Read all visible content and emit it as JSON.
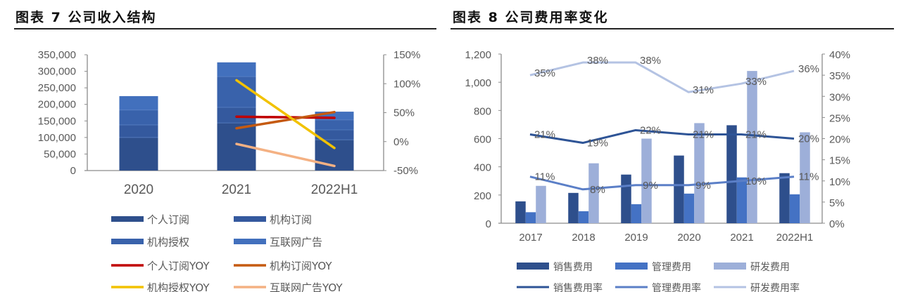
{
  "left": {
    "title": "图表 7 公司收入结构"
  },
  "right": {
    "title": "图表 8 公司费用率变化"
  },
  "chart_data": [
    {
      "type": "bar",
      "stacked": true,
      "title": "图表 7 公司收入结构",
      "categories": [
        "2020",
        "2021",
        "2022H1"
      ],
      "series": [
        {
          "name": "个人订阅",
          "axis": "left",
          "color": "#2E4F8C",
          "values": [
            100000,
            144000,
            93000
          ]
        },
        {
          "name": "机构订阅",
          "axis": "left",
          "color": "#34599E",
          "values": [
            38000,
            47000,
            30000
          ]
        },
        {
          "name": "机构授权",
          "axis": "left",
          "color": "#3962AB",
          "values": [
            45000,
            93000,
            30000
          ]
        },
        {
          "name": "互联网广告",
          "axis": "left",
          "color": "#4270BD",
          "values": [
            42000,
            43000,
            25000
          ]
        },
        {
          "name": "个人订阅YOY",
          "type": "line",
          "axis": "right",
          "color": "#C00000",
          "values": [
            null,
            43,
            41
          ]
        },
        {
          "name": "机构订阅YOY",
          "type": "line",
          "axis": "right",
          "color": "#C55A11",
          "values": [
            null,
            23,
            51
          ]
        },
        {
          "name": "机构授权YOY",
          "type": "line",
          "axis": "right",
          "color": "#F2C200",
          "values": [
            null,
            106,
            -11
          ]
        },
        {
          "name": "互联网广告YOY",
          "type": "line",
          "axis": "right",
          "color": "#F4B183",
          "values": [
            null,
            -4,
            -42
          ]
        }
      ],
      "left_axis": {
        "ylim": [
          0,
          350000
        ],
        "ticks": [
          "350,000",
          "300,000",
          "250,000",
          "200,000",
          "150,000",
          "100,000",
          "50,000",
          "0"
        ]
      },
      "right_axis": {
        "ylim": [
          -50,
          150
        ],
        "ticks": [
          "150%",
          "100%",
          "50%",
          "0%",
          "-50%"
        ]
      },
      "legend": [
        "个人订阅",
        "机构订阅",
        "机构授权",
        "互联网广告",
        "个人订阅YOY",
        "机构订阅YOY",
        "机构授权YOY",
        "互联网广告YOY"
      ],
      "legend_position": "bottom",
      "grid": false
    },
    {
      "type": "bar",
      "title": "图表 8 公司费用率变化",
      "categories": [
        "2017",
        "2018",
        "2019",
        "2020",
        "2021",
        "2022H1"
      ],
      "series": [
        {
          "name": "销售费用",
          "axis": "left",
          "color": "#2E4F8C",
          "values": [
            155,
            215,
            345,
            480,
            695,
            355
          ]
        },
        {
          "name": "管理费用",
          "axis": "left",
          "color": "#4472C4",
          "values": [
            78,
            85,
            135,
            210,
            325,
            205
          ]
        },
        {
          "name": "研发费用",
          "axis": "left",
          "color": "#9DAFD9",
          "values": [
            265,
            425,
            600,
            710,
            1080,
            645
          ]
        },
        {
          "name": "销售费用率",
          "type": "line",
          "axis": "right",
          "color": "#2E5496",
          "values": [
            21,
            19,
            22,
            21,
            21,
            20
          ],
          "labels": [
            "21%",
            "19%",
            "22%",
            "21%",
            "21%",
            "20%"
          ]
        },
        {
          "name": "管理费用率",
          "type": "line",
          "axis": "right",
          "color": "#5B7FC7",
          "values": [
            11,
            8,
            9,
            9,
            10,
            11
          ],
          "labels": [
            "11%",
            "8%",
            "9%",
            "9%",
            "10%",
            "11%"
          ]
        },
        {
          "name": "研发费用率",
          "type": "line",
          "axis": "right",
          "color": "#B4C3E3",
          "values": [
            35,
            38,
            38,
            31,
            33,
            36
          ],
          "labels": [
            "35%",
            "38%",
            "38%",
            "31%",
            "33%",
            "36%"
          ]
        }
      ],
      "left_axis": {
        "ylim": [
          0,
          1200
        ],
        "ticks": [
          "1,200",
          "1,000",
          "800",
          "600",
          "400",
          "200",
          "0"
        ]
      },
      "right_axis": {
        "ylim": [
          0,
          40
        ],
        "ticks": [
          "40%",
          "35%",
          "30%",
          "25%",
          "20%",
          "15%",
          "10%",
          "5%",
          "0%"
        ]
      },
      "legend": [
        "销售费用",
        "管理费用",
        "研发费用",
        "销售费用率",
        "管理费用率",
        "研发费用率"
      ],
      "legend_position": "bottom",
      "grid": false
    }
  ]
}
